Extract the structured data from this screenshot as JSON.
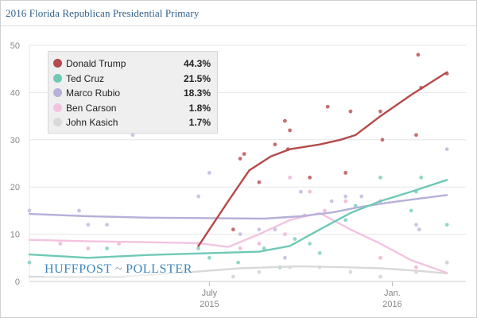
{
  "chart_data": {
    "type": "line",
    "title": "2016 Florida Republican Presidential Primary",
    "x_ticks": [
      {
        "label": "July",
        "sub": "2015",
        "date": "2015-07-01"
      },
      {
        "label": "Jan.",
        "sub": "2016",
        "date": "2016-01-01"
      }
    ],
    "x_range": [
      "2015-01-01",
      "2016-03-15"
    ],
    "ylim": [
      0,
      50
    ],
    "y_ticks": [
      0,
      10,
      20,
      30,
      40,
      50
    ],
    "grid": true,
    "legend_position": "top-left",
    "series": [
      {
        "name": "Donald Trump",
        "value_label": "44.3%",
        "color": "#b44a4a",
        "dot_color": "#c06060",
        "trend": [
          [
            "2015-06-20",
            7.5
          ],
          [
            "2015-07-20",
            17
          ],
          [
            "2015-08-10",
            23.5
          ],
          [
            "2015-09-01",
            26.5
          ],
          [
            "2015-09-20",
            28
          ],
          [
            "2015-10-20",
            29
          ],
          [
            "2015-11-10",
            30
          ],
          [
            "2015-11-25",
            31
          ],
          [
            "2015-12-20",
            35
          ],
          [
            "2016-01-20",
            39.5
          ],
          [
            "2016-02-25",
            44.3
          ]
        ],
        "polls": [
          [
            "2015-07-25",
            11
          ],
          [
            "2015-08-01",
            26
          ],
          [
            "2015-08-05",
            27
          ],
          [
            "2015-08-20",
            21
          ],
          [
            "2015-09-05",
            29
          ],
          [
            "2015-09-15",
            34
          ],
          [
            "2015-09-20",
            32
          ],
          [
            "2015-09-18",
            28
          ],
          [
            "2015-10-10",
            22
          ],
          [
            "2015-10-28",
            37
          ],
          [
            "2015-11-15",
            23
          ],
          [
            "2015-11-20",
            36
          ],
          [
            "2015-12-20",
            36
          ],
          [
            "2015-12-22",
            30
          ],
          [
            "2016-01-25",
            31
          ],
          [
            "2016-01-27",
            48
          ],
          [
            "2016-01-30",
            41
          ],
          [
            "2016-02-25",
            44
          ]
        ]
      },
      {
        "name": "Ted Cruz",
        "value_label": "21.5%",
        "color": "#6fc9b6",
        "dot_color": "#88d3c4",
        "trend": [
          [
            "2015-01-01",
            5.7
          ],
          [
            "2015-03-01",
            5
          ],
          [
            "2015-05-01",
            5.6
          ],
          [
            "2015-07-01",
            6
          ],
          [
            "2015-08-20",
            6.3
          ],
          [
            "2015-09-20",
            7.5
          ],
          [
            "2015-10-20",
            11
          ],
          [
            "2015-11-20",
            14.5
          ],
          [
            "2015-12-20",
            17
          ],
          [
            "2016-01-20",
            19
          ],
          [
            "2016-02-25",
            21.5
          ]
        ],
        "polls": [
          [
            "2015-01-01",
            4
          ],
          [
            "2015-03-20",
            7
          ],
          [
            "2015-06-20",
            7
          ],
          [
            "2015-07-01",
            5
          ],
          [
            "2015-07-30",
            4
          ],
          [
            "2015-08-25",
            7
          ],
          [
            "2015-09-10",
            3
          ],
          [
            "2015-09-25",
            9
          ],
          [
            "2015-10-10",
            8
          ],
          [
            "2015-10-20",
            6
          ],
          [
            "2015-11-15",
            13
          ],
          [
            "2015-11-25",
            16
          ],
          [
            "2015-12-20",
            22
          ],
          [
            "2016-01-20",
            15
          ],
          [
            "2016-01-25",
            19
          ],
          [
            "2016-01-30",
            22
          ],
          [
            "2016-02-25",
            12
          ]
        ]
      },
      {
        "name": "Marco Rubio",
        "value_label": "18.3%",
        "color": "#b5b0d8",
        "dot_color": "#c4bfe0",
        "trend": [
          [
            "2015-01-01",
            14.3
          ],
          [
            "2015-03-01",
            13.8
          ],
          [
            "2015-05-01",
            13.5
          ],
          [
            "2015-07-01",
            13.4
          ],
          [
            "2015-08-25",
            13.3
          ],
          [
            "2015-10-01",
            13.8
          ],
          [
            "2015-11-01",
            14.6
          ],
          [
            "2015-12-01",
            15.8
          ],
          [
            "2016-01-01",
            16.8
          ],
          [
            "2016-02-25",
            18.3
          ]
        ],
        "polls": [
          [
            "2015-01-01",
            15
          ],
          [
            "2015-02-20",
            15
          ],
          [
            "2015-03-01",
            12
          ],
          [
            "2015-03-20",
            12
          ],
          [
            "2015-04-15",
            31
          ],
          [
            "2015-06-20",
            18
          ],
          [
            "2015-07-01",
            23
          ],
          [
            "2015-08-01",
            10
          ],
          [
            "2015-08-20",
            11
          ],
          [
            "2015-09-05",
            11
          ],
          [
            "2015-09-15",
            5
          ],
          [
            "2015-10-01",
            19
          ],
          [
            "2015-11-01",
            17
          ],
          [
            "2015-11-15",
            18
          ],
          [
            "2015-12-01",
            18
          ],
          [
            "2015-12-20",
            17
          ],
          [
            "2016-01-25",
            12
          ],
          [
            "2016-01-28",
            11
          ],
          [
            "2016-02-25",
            28
          ]
        ]
      },
      {
        "name": "Ben Carson",
        "value_label": "1.8%",
        "color": "#f2c4e0",
        "dot_color": "#f0b8d8",
        "trend": [
          [
            "2015-01-01",
            8.8
          ],
          [
            "2015-03-01",
            8.5
          ],
          [
            "2015-05-01",
            8.3
          ],
          [
            "2015-06-20",
            8.1
          ],
          [
            "2015-07-20",
            7.3
          ],
          [
            "2015-08-20",
            10
          ],
          [
            "2015-09-20",
            13
          ],
          [
            "2015-10-20",
            14.5
          ],
          [
            "2015-11-20",
            11
          ],
          [
            "2015-12-20",
            8
          ],
          [
            "2016-01-20",
            4.5
          ],
          [
            "2016-02-25",
            1.8
          ]
        ],
        "polls": [
          [
            "2015-02-01",
            8
          ],
          [
            "2015-03-01",
            7
          ],
          [
            "2015-04-01",
            8
          ],
          [
            "2015-06-20",
            8
          ],
          [
            "2015-08-01",
            7
          ],
          [
            "2015-08-20",
            8
          ],
          [
            "2015-09-15",
            10
          ],
          [
            "2015-09-20",
            22
          ],
          [
            "2015-10-05",
            14
          ],
          [
            "2015-10-10",
            19
          ],
          [
            "2015-10-25",
            15
          ],
          [
            "2015-11-15",
            17
          ],
          [
            "2015-12-20",
            5
          ],
          [
            "2016-01-25",
            3
          ],
          [
            "2016-02-25",
            4
          ]
        ]
      },
      {
        "name": "John Kasich",
        "value_label": "1.7%",
        "color": "#d9d9d9",
        "dot_color": "#d6d6d6",
        "trend": [
          [
            "2015-01-01",
            1
          ],
          [
            "2015-04-01",
            1
          ],
          [
            "2015-06-01",
            1.8
          ],
          [
            "2015-08-01",
            2.8
          ],
          [
            "2015-10-01",
            3.2
          ],
          [
            "2015-11-15",
            3
          ],
          [
            "2015-12-20",
            2.8
          ],
          [
            "2016-01-30",
            2.2
          ],
          [
            "2016-02-25",
            1.7
          ]
        ],
        "polls": [
          [
            "2015-07-25",
            1
          ],
          [
            "2015-08-20",
            2
          ],
          [
            "2015-09-20",
            3
          ],
          [
            "2015-10-20",
            3
          ],
          [
            "2015-11-20",
            2
          ],
          [
            "2015-12-20",
            1
          ],
          [
            "2016-01-25",
            2
          ],
          [
            "2016-02-25",
            4
          ]
        ]
      }
    ]
  },
  "brand": {
    "left": "HUFFPOST",
    "separator": "~",
    "right": "POLLSTER"
  }
}
